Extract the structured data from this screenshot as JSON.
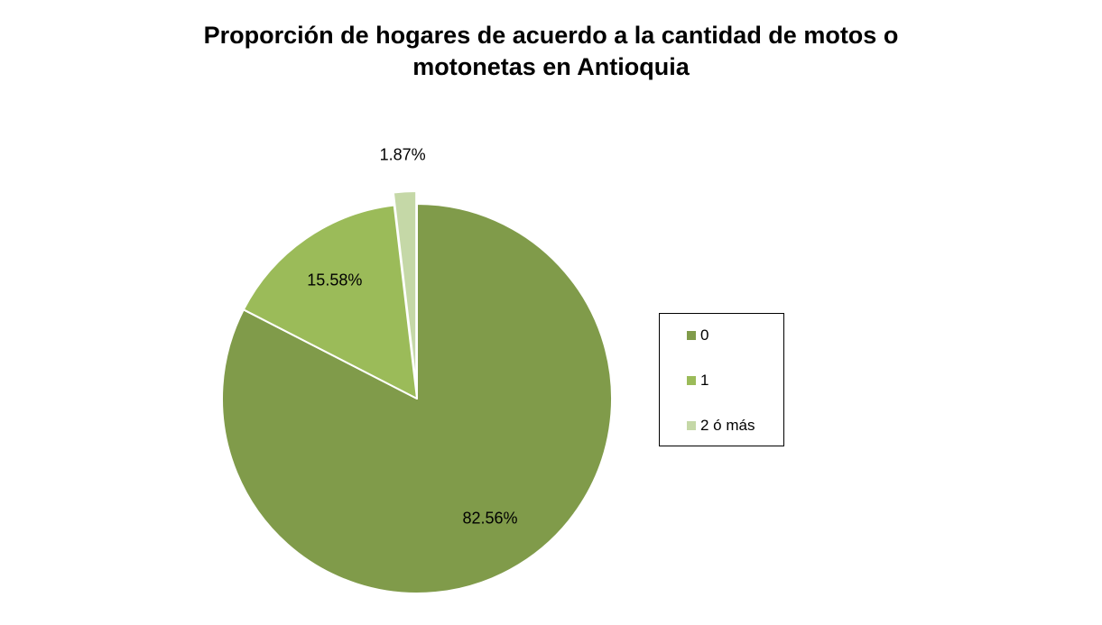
{
  "chart_data": {
    "type": "pie",
    "title": "Proporción de hogares de acuerdo a la cantidad de motos o motonetas en Antioquia",
    "title_lines": [
      "Proporción de hogares de acuerdo a la cantidad de motos o",
      "motonetas en Antioquia"
    ],
    "categories": [
      "0",
      "1",
      "2 ó más"
    ],
    "values": [
      82.56,
      15.58,
      1.87
    ],
    "data_labels": [
      "82.56%",
      "15.58%",
      "1.87%"
    ],
    "colors": [
      "#809b4a",
      "#9bbb59",
      "#c5d8a7"
    ],
    "exploded_slice": "2 ó más",
    "legend_position": "right"
  }
}
